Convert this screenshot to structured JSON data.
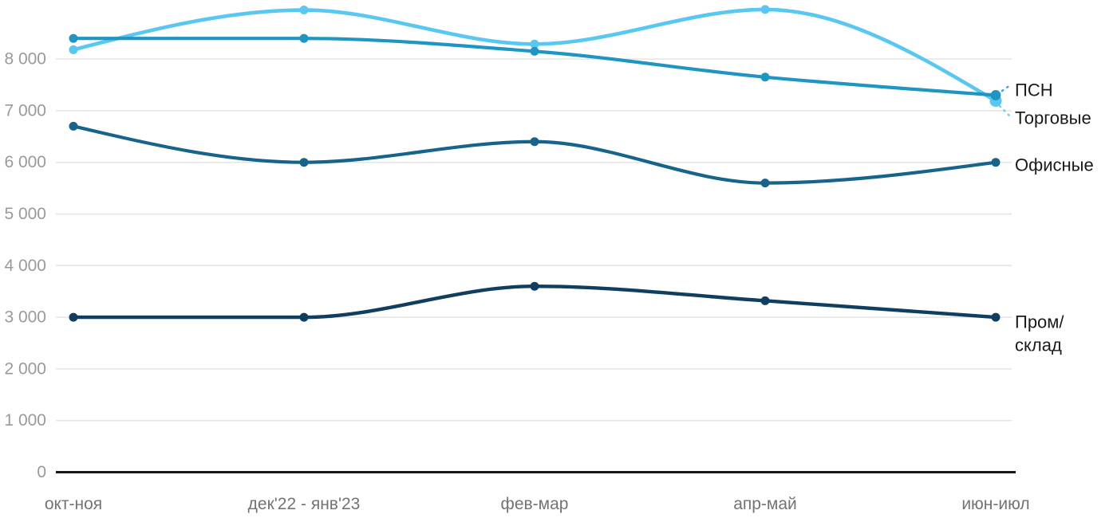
{
  "chart_data": {
    "type": "line",
    "title": "",
    "xlabel": "",
    "ylabel": "",
    "grid": true,
    "legend_position": "direct-labels-right",
    "ylim": [
      0,
      9200
    ],
    "categories": [
      "окт-ноя",
      "дек'22 - янв'23",
      "фев-мар",
      "апр-май",
      "июн-июл"
    ],
    "series": [
      {
        "name": "ПСН",
        "color": "#1e95c2",
        "values": [
          8400,
          8400,
          8150,
          7650,
          7300
        ]
      },
      {
        "name": "Торговые",
        "color": "#58c7f1",
        "values": [
          8180,
          8950,
          8290,
          8960,
          7190
        ]
      },
      {
        "name": "Офисные",
        "color": "#16648c",
        "values": [
          6700,
          6000,
          6400,
          5600,
          6000
        ]
      },
      {
        "name": "Пром/склад",
        "color": "#0f3e5f",
        "values": [
          3000,
          3000,
          3600,
          3320,
          3000
        ]
      }
    ],
    "y_ticks": [
      {
        "value": 0,
        "label": "0"
      },
      {
        "value": 1000,
        "label": "1 000"
      },
      {
        "value": 2000,
        "label": "2 000"
      },
      {
        "value": 3000,
        "label": "3 000"
      },
      {
        "value": 4000,
        "label": "4 000"
      },
      {
        "value": 5000,
        "label": "5 000"
      },
      {
        "value": 6000,
        "label": "6 000"
      },
      {
        "value": 7000,
        "label": "7 000"
      },
      {
        "value": 8000,
        "label": "8 000"
      }
    ]
  },
  "colors": {
    "background": "#ffffff",
    "grid": "#e4e4e4",
    "axis": "#161616",
    "y_tick_text": "#9a9a9a",
    "x_tick_text": "#737373",
    "series_label_text": "#1a1a1a"
  }
}
